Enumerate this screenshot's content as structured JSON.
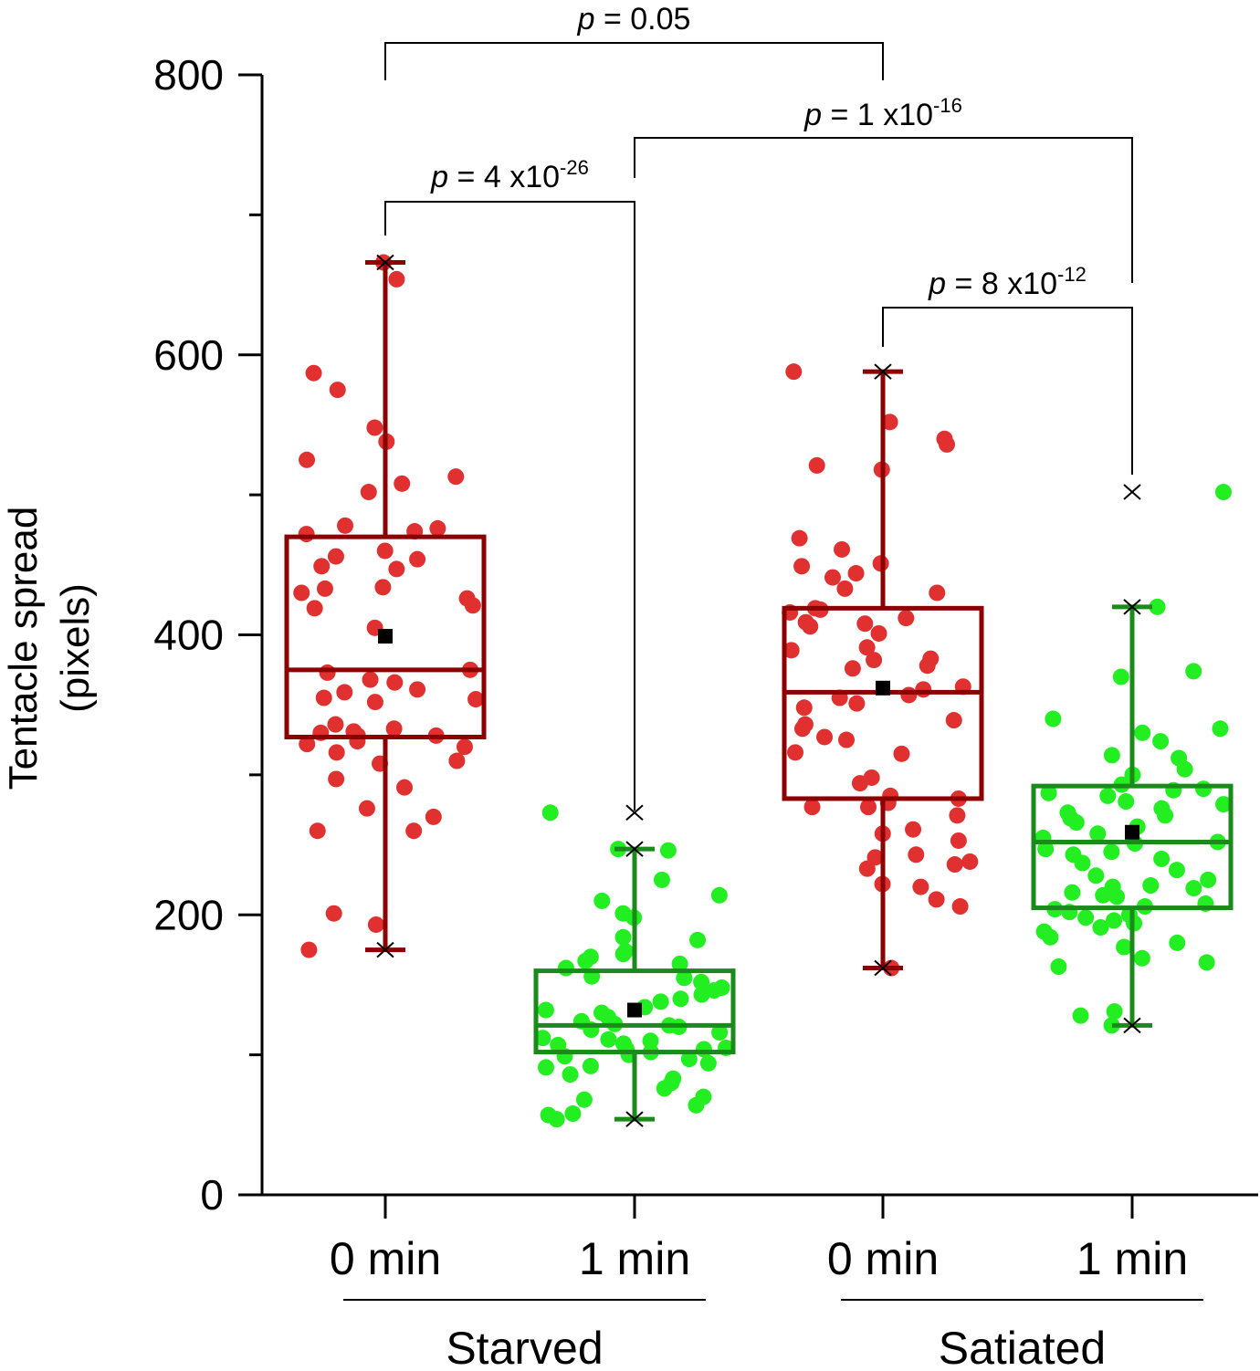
{
  "chart_data": {
    "type": "box",
    "ylabel_line1": "Tentacle spread",
    "ylabel_line2": "(pixels)",
    "ylim": [
      0,
      800
    ],
    "yticks": [
      0,
      200,
      400,
      600,
      800
    ],
    "yticks_labels": [
      "0",
      "200",
      "400",
      "600",
      "800"
    ],
    "groups": [
      {
        "label": "Starved",
        "categories": [
          "0 min",
          "1 min"
        ]
      },
      {
        "label": "Satiated",
        "categories": [
          "0 min",
          "1 min"
        ]
      }
    ],
    "colors": {
      "time0": "#e03030",
      "time0_box": "#8b0000",
      "time1": "#22ee22",
      "time1_box": "#1a8a1a"
    },
    "series": [
      {
        "group": "Starved",
        "time": "0 min",
        "color_key": "time0",
        "min": 175,
        "q1": 327,
        "median": 375,
        "q3": 470,
        "max": 666,
        "mean": 399,
        "points": [
          666,
          654,
          587,
          575,
          548,
          538,
          525,
          513,
          508,
          502,
          478,
          476,
          474,
          472,
          460,
          456,
          454,
          449,
          447,
          434,
          433,
          430,
          426,
          421,
          419,
          405,
          375,
          373,
          368,
          366,
          361,
          359,
          355,
          354,
          352,
          336,
          333,
          331,
          330,
          328,
          328,
          324,
          322,
          320,
          316,
          310,
          308,
          297,
          291,
          276,
          270,
          260,
          260,
          201,
          193,
          175
        ]
      },
      {
        "group": "Starved",
        "time": "1 min",
        "color_key": "time1",
        "min": 54,
        "q1": 102,
        "median": 121,
        "q3": 160,
        "max": 247,
        "mean": 132,
        "outliers": [
          273
        ],
        "points": [
          273,
          247,
          246,
          225,
          214,
          210,
          201,
          198,
          184,
          182,
          174,
          172,
          170,
          167,
          165,
          162,
          156,
          155,
          152,
          148,
          146,
          143,
          140,
          138,
          134,
          132,
          130,
          127,
          124,
          122,
          121,
          120,
          118,
          116,
          112,
          111,
          110,
          108,
          107,
          105,
          104,
          104,
          102,
          100,
          99,
          97,
          94,
          92,
          91,
          86,
          83,
          80,
          76,
          70,
          68,
          64,
          58,
          57,
          54
        ]
      },
      {
        "group": "Satiated",
        "time": "0 min",
        "color_key": "time0",
        "min": 162,
        "q1": 283,
        "median": 359,
        "q3": 419,
        "max": 588,
        "mean": 362,
        "points": [
          588,
          552,
          540,
          536,
          521,
          518,
          469,
          461,
          451,
          449,
          444,
          441,
          433,
          430,
          419,
          418,
          416,
          412,
          409,
          408,
          406,
          401,
          391,
          389,
          383,
          382,
          378,
          376,
          363,
          361,
          357,
          355,
          351,
          348,
          339,
          336,
          333,
          327,
          325,
          316,
          315,
          298,
          294,
          285,
          283,
          280,
          277,
          277,
          271,
          261,
          258,
          253,
          243,
          241,
          238,
          236,
          233,
          222,
          220,
          211,
          206,
          162
        ]
      },
      {
        "group": "Satiated",
        "time": "1 min",
        "color_key": "time1",
        "min": 121,
        "q1": 205,
        "median": 252,
        "q3": 292,
        "max": 420,
        "mean": 259,
        "outliers": [
          502
        ],
        "points": [
          502,
          420,
          374,
          370,
          340,
          333,
          330,
          324,
          314,
          312,
          304,
          300,
          293,
          290,
          289,
          287,
          285,
          281,
          279,
          276,
          273,
          271,
          269,
          266,
          263,
          258,
          255,
          252,
          251,
          247,
          245,
          243,
          240,
          237,
          232,
          228,
          225,
          221,
          220,
          219,
          216,
          214,
          213,
          208,
          206,
          204,
          202,
          200,
          198,
          196,
          194,
          191,
          188,
          184,
          180,
          177,
          169,
          166,
          163,
          131,
          128,
          121
        ]
      }
    ],
    "comparisons": [
      {
        "from": 0,
        "to": 2,
        "p_prefix": " = 0.05",
        "p_exp": ""
      },
      {
        "from": 0,
        "to": 1,
        "p_prefix": " = 4 x10",
        "p_exp": "-26"
      },
      {
        "from": 1,
        "to": 3,
        "p_prefix": " = 1 x10",
        "p_exp": "-16"
      },
      {
        "from": 2,
        "to": 3,
        "p_prefix": " = 8 x10",
        "p_exp": "-12"
      }
    ],
    "p_symbol": "p"
  }
}
